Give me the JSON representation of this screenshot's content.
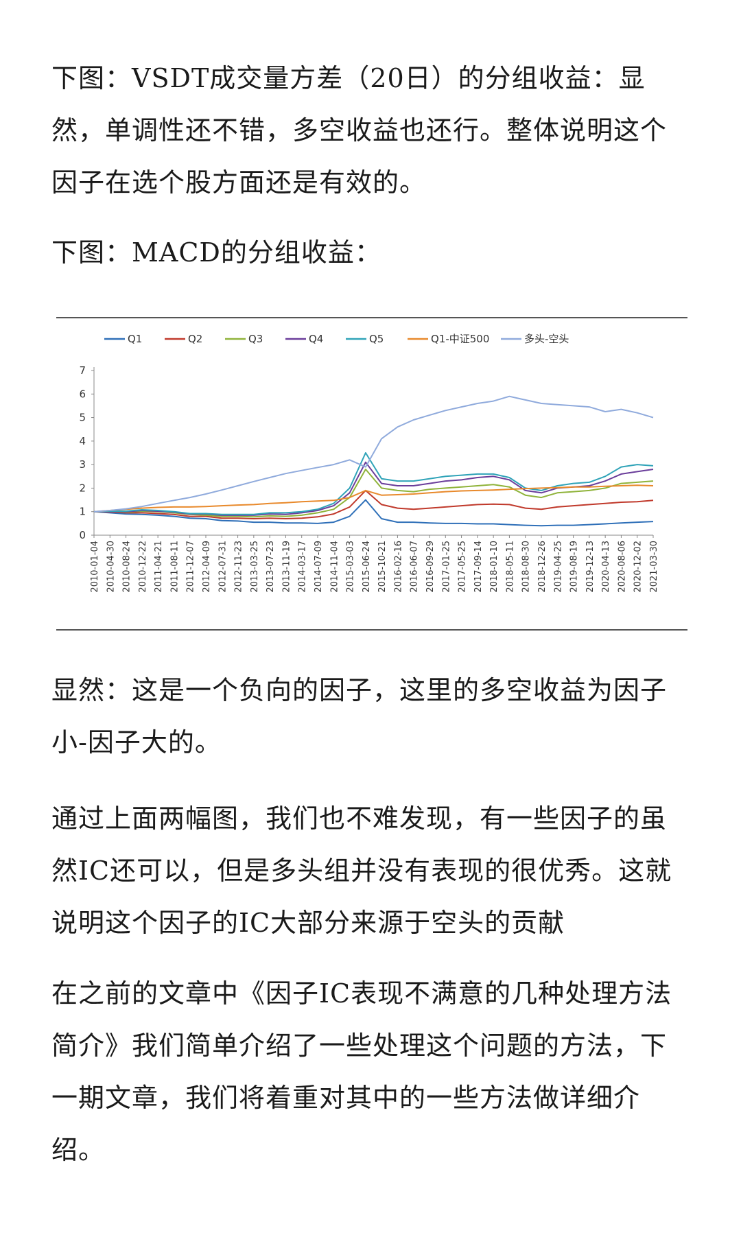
{
  "article": {
    "p1": "下图：VSDT成交量方差（20日）的分组收益：显然，单调性还不错，多空收益也还行。整体说明这个因子在选个股方面还是有效的。",
    "p2": "下图：MACD的分组收益：",
    "p3": "显然：这是一个负向的因子，这里的多空收益为因子小-因子大的。",
    "p4": "通过上面两幅图，我们也不难发现，有一些因子的虽然IC还可以，但是多头组并没有表现的很优秀。这就说明这个因子的IC大部分来源于空头的贡献",
    "p5": "在之前的文章中《因子IC表现不满意的几种处理方法简介》我们简单介绍了一些处理这个问题的方法，下一期文章，我们将着重对其中的一些方法做详细介绍。"
  },
  "chart_data": {
    "type": "line",
    "ylim": [
      0,
      7
    ],
    "yticks": [
      "0",
      "1",
      "2",
      "3",
      "4",
      "5",
      "6",
      "7"
    ],
    "xticks": [
      "2010-01-04",
      "2010-04-30",
      "2010-08-24",
      "2010-12-22",
      "2011-04-21",
      "2011-08-11",
      "2011-12-07",
      "2012-04-09",
      "2012-07-31",
      "2012-11-23",
      "2013-03-25",
      "2013-07-23",
      "2013-11-19",
      "2014-03-17",
      "2014-07-09",
      "2014-11-04",
      "2015-03-03",
      "2015-06-24",
      "2015-10-21",
      "2016-02-16",
      "2016-06-07",
      "2016-09-29",
      "2017-01-25",
      "2017-05-25",
      "2017-09-14",
      "2018-01-10",
      "2018-05-11",
      "2018-08-30",
      "2018-12-26",
      "2019-04-25",
      "2019-08-19",
      "2019-12-13",
      "2020-04-13",
      "2020-08-06",
      "2020-12-02",
      "2021-03-30"
    ],
    "legend_position": "top",
    "series": [
      {
        "name": "Q1",
        "color": "#2e6fb8",
        "values": [
          1,
          0.95,
          0.9,
          0.88,
          0.85,
          0.8,
          0.72,
          0.7,
          0.62,
          0.6,
          0.55,
          0.55,
          0.52,
          0.52,
          0.5,
          0.55,
          0.8,
          1.5,
          0.7,
          0.55,
          0.55,
          0.52,
          0.5,
          0.5,
          0.48,
          0.48,
          0.45,
          0.42,
          0.4,
          0.42,
          0.42,
          0.45,
          0.48,
          0.52,
          0.55,
          0.58
        ]
      },
      {
        "name": "Q2",
        "color": "#c0392b",
        "values": [
          1,
          0.98,
          0.95,
          0.95,
          0.92,
          0.88,
          0.8,
          0.8,
          0.72,
          0.72,
          0.7,
          0.72,
          0.7,
          0.72,
          0.78,
          0.9,
          1.2,
          1.9,
          1.3,
          1.15,
          1.1,
          1.15,
          1.2,
          1.25,
          1.3,
          1.32,
          1.3,
          1.15,
          1.1,
          1.2,
          1.25,
          1.3,
          1.35,
          1.4,
          1.42,
          1.48
        ]
      },
      {
        "name": "Q3",
        "color": "#8fb33a",
        "values": [
          1,
          1.0,
          0.98,
          1.02,
          1.0,
          0.95,
          0.88,
          0.85,
          0.8,
          0.8,
          0.78,
          0.82,
          0.8,
          0.85,
          0.95,
          1.1,
          1.6,
          2.8,
          2.0,
          1.9,
          1.85,
          1.95,
          2.0,
          2.05,
          2.1,
          2.15,
          2.05,
          1.7,
          1.6,
          1.8,
          1.85,
          1.9,
          2.0,
          2.2,
          2.25,
          2.3
        ]
      },
      {
        "name": "Q4",
        "color": "#6a3d9a",
        "values": [
          1,
          1.0,
          1.0,
          1.05,
          1.02,
          0.98,
          0.9,
          0.9,
          0.85,
          0.85,
          0.85,
          0.9,
          0.88,
          0.95,
          1.05,
          1.25,
          1.8,
          3.1,
          2.2,
          2.1,
          2.1,
          2.2,
          2.3,
          2.35,
          2.45,
          2.5,
          2.35,
          1.9,
          1.8,
          2.0,
          2.05,
          2.1,
          2.3,
          2.6,
          2.7,
          2.8
        ]
      },
      {
        "name": "Q5",
        "color": "#2fa3b8",
        "values": [
          1,
          1.02,
          1.02,
          1.08,
          1.05,
          1.0,
          0.92,
          0.92,
          0.88,
          0.88,
          0.88,
          0.95,
          0.95,
          1.0,
          1.1,
          1.35,
          2.0,
          3.5,
          2.4,
          2.3,
          2.3,
          2.4,
          2.5,
          2.55,
          2.6,
          2.6,
          2.45,
          2.0,
          1.9,
          2.1,
          2.2,
          2.25,
          2.5,
          2.9,
          3.0,
          2.95
        ]
      },
      {
        "name": "Q1-中证500",
        "color": "#e8892b",
        "values": [
          1,
          1.05,
          1.1,
          1.15,
          1.18,
          1.2,
          1.2,
          1.22,
          1.25,
          1.28,
          1.3,
          1.35,
          1.38,
          1.42,
          1.45,
          1.48,
          1.6,
          1.9,
          1.7,
          1.72,
          1.75,
          1.8,
          1.85,
          1.88,
          1.9,
          1.92,
          1.95,
          1.98,
          2.0,
          2.02,
          2.05,
          2.05,
          2.08,
          2.1,
          2.12,
          2.1
        ]
      },
      {
        "name": "多头-空头",
        "color": "#8faadc",
        "values": [
          1,
          1.05,
          1.12,
          1.22,
          1.35,
          1.48,
          1.6,
          1.75,
          1.92,
          2.1,
          2.28,
          2.45,
          2.62,
          2.75,
          2.88,
          3.0,
          3.2,
          2.9,
          4.1,
          4.6,
          4.9,
          5.1,
          5.3,
          5.45,
          5.6,
          5.7,
          5.9,
          5.75,
          5.6,
          5.55,
          5.5,
          5.45,
          5.25,
          5.35,
          5.2,
          5.0
        ]
      }
    ]
  }
}
